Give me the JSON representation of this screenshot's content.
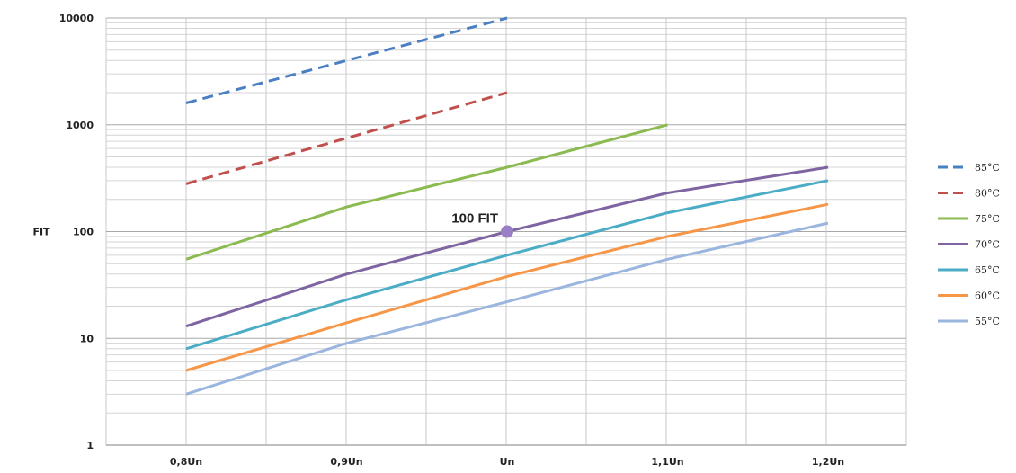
{
  "chart_data": {
    "type": "line",
    "title": "",
    "xlabel": "",
    "ylabel": "FIT",
    "y_scale": "log",
    "ylim": [
      1,
      10000
    ],
    "y_ticks": [
      "10000",
      "1000",
      "100",
      "10",
      "1"
    ],
    "categories": [
      "0,8Un",
      "0,9Un",
      "Un",
      "1,1Un",
      "1,2Un"
    ],
    "grid": true,
    "legend_position": "right",
    "series": [
      {
        "name": "85°C",
        "color": "#4a7fc1",
        "dashed": true,
        "values": [
          1600,
          4000,
          10000,
          null,
          null
        ]
      },
      {
        "name": "80°C",
        "color": "#c0504d",
        "dashed": true,
        "values": [
          280,
          750,
          2000,
          null,
          null
        ]
      },
      {
        "name": "75°C",
        "color": "#8bbb50",
        "dashed": false,
        "values": [
          55,
          170,
          400,
          1000,
          null
        ]
      },
      {
        "name": "70°C",
        "color": "#7f64a2",
        "dashed": false,
        "values": [
          13,
          40,
          100,
          230,
          400
        ]
      },
      {
        "name": "65°C",
        "color": "#4bacc6",
        "dashed": false,
        "values": [
          8,
          23,
          60,
          150,
          300
        ]
      },
      {
        "name": "60°C",
        "color": "#f79646",
        "dashed": false,
        "values": [
          5,
          14,
          38,
          90,
          180
        ]
      },
      {
        "name": "55°C",
        "color": "#9ab5de",
        "dashed": false,
        "values": [
          3,
          9,
          22,
          55,
          120
        ]
      }
    ],
    "annotation": {
      "text": "100 FIT",
      "series": "70°C",
      "x": "Un",
      "y": 100,
      "marker_color": "#9b7fc4"
    }
  }
}
